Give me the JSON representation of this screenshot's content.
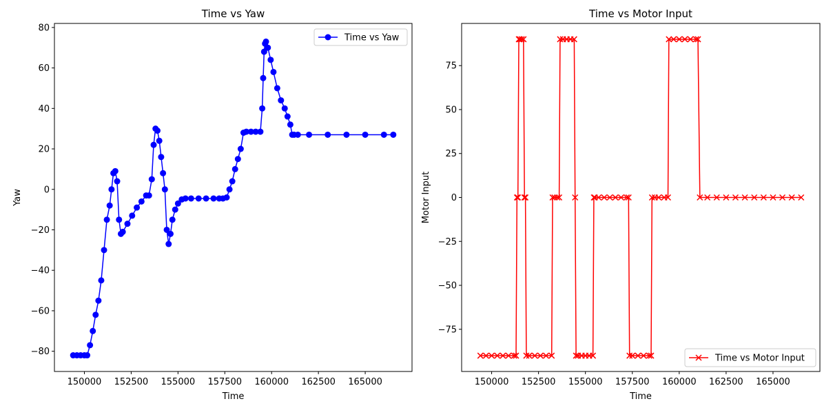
{
  "chart_data": [
    {
      "type": "line",
      "title": "Time vs Yaw",
      "xlabel": "Time",
      "ylabel": "Yaw",
      "xlim": [
        148400,
        167500
      ],
      "ylim": [
        -90,
        82
      ],
      "xticks": [
        150000,
        152500,
        155000,
        157500,
        160000,
        162500,
        165000
      ],
      "yticks": [
        -80,
        -60,
        -40,
        -20,
        0,
        20,
        40,
        60,
        80
      ],
      "grid": false,
      "legend_position": "top-right",
      "series": [
        {
          "name": "Time vs Yaw",
          "color": "#0000ff",
          "marker": "circle",
          "x": [
            149400,
            149600,
            149800,
            150000,
            150150,
            150300,
            150450,
            150600,
            150750,
            150900,
            151050,
            151200,
            151350,
            151450,
            151550,
            151650,
            151750,
            151850,
            151950,
            152050,
            152300,
            152550,
            152800,
            153050,
            153300,
            153450,
            153600,
            153700,
            153800,
            153900,
            154000,
            154100,
            154200,
            154300,
            154400,
            154500,
            154600,
            154700,
            154850,
            155000,
            155200,
            155400,
            155700,
            156100,
            156500,
            156900,
            157200,
            157400,
            157600,
            157750,
            157900,
            158050,
            158200,
            158350,
            158500,
            158650,
            158900,
            159150,
            159400,
            159500,
            159550,
            159600,
            159650,
            159700,
            159800,
            159950,
            160100,
            160300,
            160500,
            160700,
            160850,
            161000,
            161100,
            161200,
            161400,
            162000,
            163000,
            164000,
            165000,
            166000,
            166500
          ],
          "y": [
            -82,
            -82,
            -82,
            -82,
            -82,
            -77,
            -70,
            -62,
            -55,
            -45,
            -30,
            -15,
            -8,
            0,
            8,
            9,
            4,
            -15,
            -22,
            -21,
            -17,
            -13,
            -9,
            -6,
            -3,
            -3,
            5,
            22,
            30,
            29,
            24,
            16,
            8,
            0,
            -20,
            -27,
            -22,
            -15,
            -10,
            -7,
            -5,
            -4.5,
            -4.5,
            -4.5,
            -4.5,
            -4.5,
            -4.5,
            -4.5,
            -4,
            0,
            4,
            10,
            15,
            20,
            28,
            28.5,
            28.5,
            28.5,
            28.5,
            40,
            55,
            68,
            72,
            73,
            70,
            64,
            58,
            50,
            44,
            40,
            36,
            32,
            27,
            27,
            27,
            27,
            27,
            27,
            27,
            27,
            27
          ]
        }
      ]
    },
    {
      "type": "line",
      "title": "Time vs Motor Input",
      "xlabel": "Time",
      "ylabel": "Motor Input",
      "xlim": [
        148400,
        167500
      ],
      "ylim": [
        -99,
        99
      ],
      "xticks": [
        150000,
        152500,
        155000,
        157500,
        160000,
        162500,
        165000
      ],
      "yticks": [
        -75,
        -50,
        -25,
        0,
        25,
        50,
        75
      ],
      "grid": false,
      "legend_position": "bottom-right",
      "series": [
        {
          "name": "Time vs Motor Input",
          "color": "#ff0000",
          "marker": "x",
          "x": [
            149400,
            149700,
            150000,
            150300,
            150600,
            150900,
            151200,
            151300,
            151350,
            151400,
            151450,
            151500,
            151600,
            151700,
            151750,
            151800,
            151850,
            152000,
            152300,
            152600,
            152900,
            153200,
            153250,
            153350,
            153500,
            153600,
            153650,
            153800,
            154000,
            154200,
            154400,
            154450,
            154500,
            154600,
            154800,
            155000,
            155200,
            155400,
            155450,
            155500,
            155700,
            156000,
            156300,
            156600,
            156900,
            157200,
            157300,
            157350,
            157500,
            157800,
            158100,
            158400,
            158500,
            158550,
            158700,
            158900,
            159200,
            159400,
            159450,
            159700,
            160000,
            160300,
            160600,
            160900,
            161000,
            161100,
            161500,
            162000,
            162500,
            163000,
            163500,
            164000,
            164500,
            165000,
            165500,
            166000,
            166500
          ],
          "y": [
            -90,
            -90,
            -90,
            -90,
            -90,
            -90,
            -90,
            -90,
            0,
            0,
            90,
            90,
            90,
            90,
            0,
            0,
            -90,
            -90,
            -90,
            -90,
            -90,
            -90,
            0,
            0,
            0,
            0,
            90,
            90,
            90,
            90,
            90,
            0,
            -90,
            -90,
            -90,
            -90,
            -90,
            -90,
            0,
            0,
            0,
            0,
            0,
            0,
            0,
            0,
            0,
            -90,
            -90,
            -90,
            -90,
            -90,
            -90,
            0,
            0,
            0,
            0,
            0,
            90,
            90,
            90,
            90,
            90,
            90,
            90,
            0,
            0,
            0,
            0,
            0,
            0,
            0,
            0,
            0,
            0,
            0,
            0
          ]
        }
      ]
    }
  ]
}
